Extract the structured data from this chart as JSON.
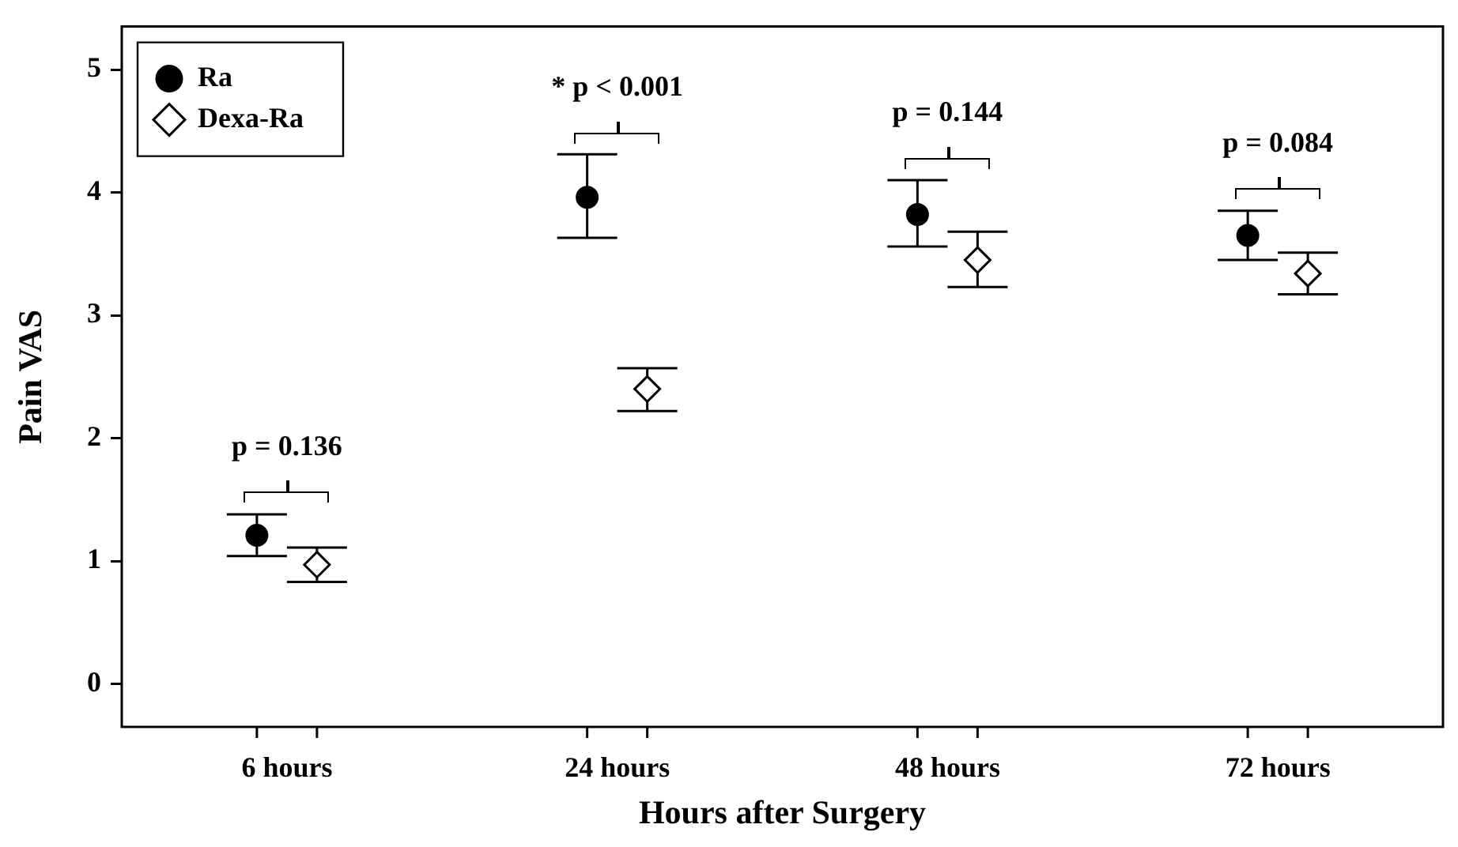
{
  "chart_data": {
    "type": "scatter",
    "xlabel": "Hours after Surgery",
    "ylabel": "Pain VAS",
    "categories": [
      "6 hours",
      "24 hours",
      "48 hours",
      "72 hours"
    ],
    "series": [
      {
        "name": "Ra",
        "color": "#000000",
        "marker": "circle",
        "values": [
          1.21,
          3.96,
          3.82,
          3.65
        ],
        "errors": [
          [
            1.04,
            1.38
          ],
          [
            3.63,
            4.31
          ],
          [
            3.56,
            4.1
          ],
          [
            3.45,
            3.85
          ]
        ]
      },
      {
        "name": "Dexa-Ra",
        "color": "#ffffff",
        "marker": "diamond",
        "values": [
          0.97,
          2.4,
          3.45,
          3.34
        ],
        "errors": [
          [
            0.83,
            1.11
          ],
          [
            2.22,
            2.57
          ],
          [
            3.23,
            3.68
          ],
          [
            3.17,
            3.51
          ]
        ]
      }
    ],
    "ylim": [
      -0.35,
      5.35
    ],
    "yticks": [
      0,
      1,
      2,
      3,
      4,
      5
    ],
    "grid": false,
    "legend": "top left",
    "annotations": [
      "p = 0.136",
      "* p < 0.001",
      "p = 0.144",
      "p = 0.084"
    ]
  }
}
